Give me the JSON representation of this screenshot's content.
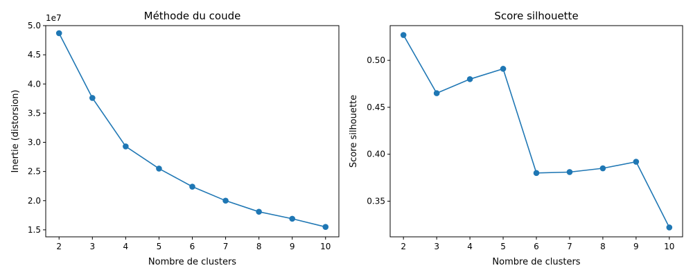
{
  "colors": {
    "series": "#1f77b4",
    "axes": "#000000",
    "background": "#ffffff"
  },
  "chart_data": [
    {
      "type": "line",
      "marker": "circle",
      "grid": false,
      "title": "Méthode du coude",
      "xlabel": "Nombre de clusters",
      "ylabel": "Inertie (distorsion)",
      "y_scale_label": "1e7",
      "x": [
        2,
        3,
        4,
        5,
        6,
        7,
        8,
        9,
        10
      ],
      "xticks": [
        "2",
        "3",
        "4",
        "5",
        "6",
        "7",
        "8",
        "9",
        "10"
      ],
      "yticks": [
        {
          "value": 1.5,
          "label": "1.5"
        },
        {
          "value": 2.0,
          "label": "2.0"
        },
        {
          "value": 2.5,
          "label": "2.5"
        },
        {
          "value": 3.0,
          "label": "3.0"
        },
        {
          "value": 3.5,
          "label": "3.5"
        },
        {
          "value": 4.0,
          "label": "4.0"
        },
        {
          "value": 4.5,
          "label": "4.5"
        },
        {
          "value": 5.0,
          "label": "5.0"
        }
      ],
      "xlim": [
        1.6,
        10.4
      ],
      "ylim": [
        1.38,
        5.0
      ],
      "series": [
        {
          "values": [
            4.87,
            3.76,
            2.93,
            2.55,
            2.24,
            2.0,
            1.81,
            1.69,
            1.55
          ]
        }
      ]
    },
    {
      "type": "line",
      "marker": "circle",
      "grid": false,
      "title": "Score silhouette",
      "xlabel": "Nombre de clusters",
      "ylabel": "Score silhouette",
      "x": [
        2,
        3,
        4,
        5,
        6,
        7,
        8,
        9,
        10
      ],
      "xticks": [
        "2",
        "3",
        "4",
        "5",
        "6",
        "7",
        "8",
        "9",
        "10"
      ],
      "yticks": [
        {
          "value": 0.35,
          "label": "0.35"
        },
        {
          "value": 0.4,
          "label": "0.40"
        },
        {
          "value": 0.45,
          "label": "0.45"
        },
        {
          "value": 0.5,
          "label": "0.50"
        }
      ],
      "xlim": [
        1.6,
        10.4
      ],
      "ylim": [
        0.312,
        0.537
      ],
      "series": [
        {
          "values": [
            0.527,
            0.465,
            0.48,
            0.491,
            0.38,
            0.381,
            0.385,
            0.392,
            0.322
          ]
        }
      ]
    }
  ]
}
